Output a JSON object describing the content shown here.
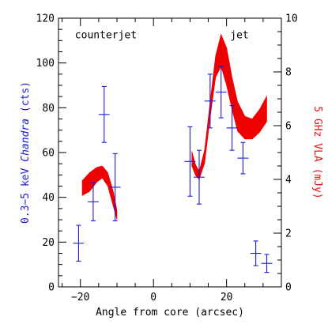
{
  "chart_data": {
    "type": "scatter",
    "xlabel": "Angle from core (arcsec)",
    "ylabel_left": {
      "prefix": "0.3−5 keV ",
      "italic": "Chandra",
      "suffix": " (cts)",
      "color": "#1a1adc"
    },
    "ylabel_right": {
      "text": "5 GHz VLA (mJy)",
      "color": "#ee1111"
    },
    "xlim": [
      -26,
      35
    ],
    "ylim_left": [
      0,
      120
    ],
    "ylim_right": [
      0,
      10
    ],
    "xticks": [
      -20,
      0,
      20
    ],
    "xtick_labels": [
      "−20",
      "0",
      "20"
    ],
    "yticks_left": [
      0,
      20,
      40,
      60,
      80,
      100,
      120
    ],
    "ytick_labels_left": [
      "0",
      "20",
      "40",
      "60",
      "80",
      "100",
      "120"
    ],
    "yticks_right": [
      0,
      2,
      4,
      6,
      8,
      10
    ],
    "ytick_labels_right": [
      "0",
      "2",
      "4",
      "6",
      "8",
      "10"
    ],
    "annotations": [
      {
        "text": "counterjet",
        "x": -21.5,
        "y": 111
      },
      {
        "text": "jet",
        "x": 21,
        "y": 111
      }
    ],
    "series": [
      {
        "type": "errorbar",
        "axis": "left",
        "color": "#1a1adc",
        "points": [
          {
            "x": -20.5,
            "xerr": 1.5,
            "y": 19.5,
            "yerr": 8
          },
          {
            "x": -16.5,
            "xerr": 1.5,
            "y": 38,
            "yerr": 8.5
          },
          {
            "x": -13.5,
            "xerr": 1.5,
            "y": 77,
            "yerr": 12.5
          },
          {
            "x": -10.5,
            "xerr": 1.5,
            "y": 44.5,
            "yerr": 15
          },
          {
            "x": 10.0,
            "xerr": 1.5,
            "y": 56,
            "yerr": 15.5
          },
          {
            "x": 12.5,
            "xerr": 1.5,
            "y": 49,
            "yerr": 12
          },
          {
            "x": 15.5,
            "xerr": 1.5,
            "y": 83,
            "yerr": 12
          },
          {
            "x": 18.5,
            "xerr": 1.5,
            "y": 87,
            "yerr": 11.5
          },
          {
            "x": 21.5,
            "xerr": 1.5,
            "y": 71,
            "yerr": 10
          },
          {
            "x": 24.5,
            "xerr": 1.5,
            "y": 57.5,
            "yerr": 7
          },
          {
            "x": 28.0,
            "xerr": 1.5,
            "y": 15,
            "yerr": 5.5
          },
          {
            "x": 31.0,
            "xerr": 1.5,
            "y": 10.5,
            "yerr": 4
          }
        ]
      },
      {
        "type": "band",
        "axis": "right",
        "color": "#ee0000",
        "segments": [
          {
            "x": [
              -19.5,
              -17.5,
              -15.5,
              -14.0,
              -12.5,
              -11.0,
              -10.0
            ],
            "upper": [
              3.95,
              4.25,
              4.45,
              4.5,
              4.25,
              3.55,
              2.85
            ],
            "lower": [
              3.4,
              3.55,
              3.9,
              4.05,
              3.75,
              3.0,
              2.5
            ]
          },
          {
            "x": [
              10.5,
              11.5,
              12.5,
              14.0,
              15.5,
              17.0,
              18.5,
              20.0,
              21.5,
              23.0,
              25.0,
              27.0,
              29.0,
              31.0
            ],
            "upper": [
              5.05,
              4.55,
              4.3,
              5.1,
              6.9,
              8.6,
              9.4,
              8.9,
              7.8,
              6.9,
              6.35,
              6.25,
              6.6,
              7.1
            ],
            "lower": [
              4.5,
              4.15,
              4.0,
              4.6,
              6.3,
              7.8,
              8.2,
              7.5,
              6.6,
              5.8,
              5.5,
              5.5,
              5.75,
              6.15
            ]
          }
        ]
      }
    ]
  }
}
